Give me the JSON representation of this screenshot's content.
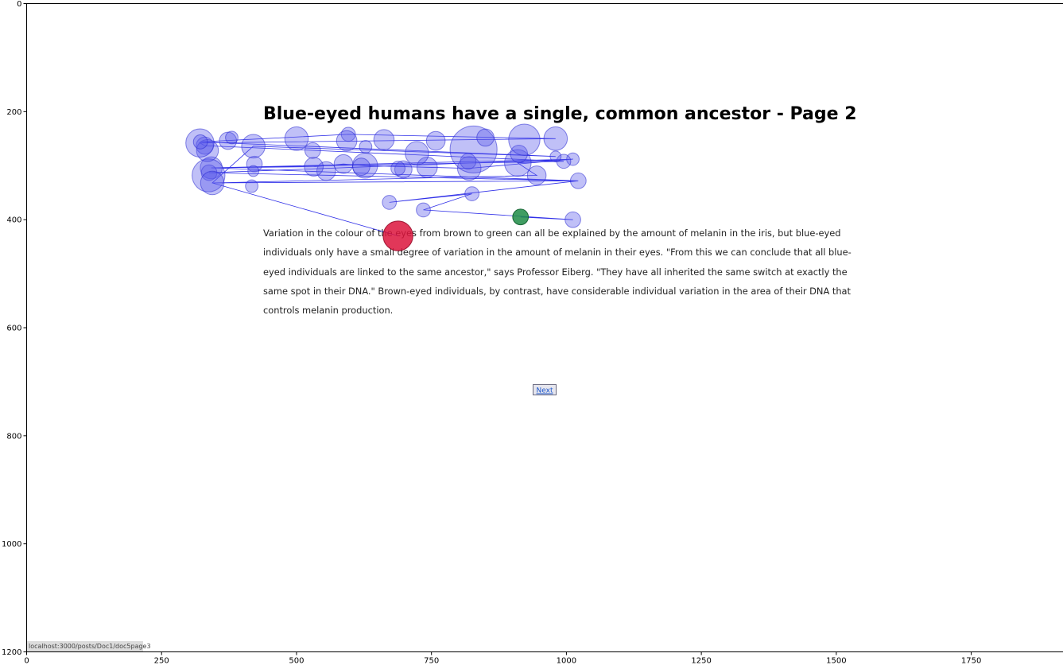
{
  "page": {
    "title": "Blue-eyed humans have a single, common ancestor - Page 2",
    "paragraph_lines": [
      "Variation in the colour of the eyes from brown to green can all be explained by the amount of melanin in the iris, but blue-eyed",
      "individuals only have a small degree of variation in the amount of melanin in their eyes. \"From this we can conclude that all blue-",
      "eyed individuals are linked to the same ancestor,\" says Professor Eiberg. \"They have all inherited the same switch at exactly the",
      "same spot in their DNA.\" Brown-eyed individuals, by contrast, have considerable individual variation in the area of their DNA that",
      "controls melanin production."
    ],
    "next_label": "Next",
    "status_url": "localhost:3000/posts/Doc1/doc5page3"
  },
  "chart_data": {
    "type": "scatter",
    "title": "",
    "xlabel": "",
    "ylabel": "",
    "xlim": [
      0,
      1920
    ],
    "ylim": [
      1200,
      0
    ],
    "x_ticks": [
      0,
      250,
      500,
      750,
      1000,
      1250,
      1500,
      1750
    ],
    "y_ticks": [
      0,
      200,
      400,
      600,
      800,
      1000,
      1200
    ],
    "grid": false,
    "colors": {
      "fixation": "#5a5aeb",
      "first_fixation": "#1e8c46",
      "last_fixation": "#dc143c",
      "scanpath": "#1a1ae6"
    },
    "fixations": [
      {
        "x": 915,
        "y": 395,
        "r": 10,
        "role": "first"
      },
      {
        "x": 1012,
        "y": 400,
        "r": 10
      },
      {
        "x": 735,
        "y": 382,
        "r": 9
      },
      {
        "x": 825,
        "y": 352,
        "r": 9
      },
      {
        "x": 672,
        "y": 368,
        "r": 9
      },
      {
        "x": 1022,
        "y": 328,
        "r": 10
      },
      {
        "x": 945,
        "y": 318,
        "r": 12
      },
      {
        "x": 910,
        "y": 295,
        "r": 17
      },
      {
        "x": 1012,
        "y": 288,
        "r": 8
      },
      {
        "x": 995,
        "y": 292,
        "r": 9
      },
      {
        "x": 980,
        "y": 283,
        "r": 7
      },
      {
        "x": 912,
        "y": 278,
        "r": 11
      },
      {
        "x": 820,
        "y": 305,
        "r": 15
      },
      {
        "x": 818,
        "y": 292,
        "r": 10
      },
      {
        "x": 742,
        "y": 303,
        "r": 13
      },
      {
        "x": 698,
        "y": 307,
        "r": 11
      },
      {
        "x": 688,
        "y": 305,
        "r": 9
      },
      {
        "x": 627,
        "y": 300,
        "r": 16
      },
      {
        "x": 620,
        "y": 302,
        "r": 11
      },
      {
        "x": 587,
        "y": 297,
        "r": 12
      },
      {
        "x": 555,
        "y": 310,
        "r": 12
      },
      {
        "x": 532,
        "y": 302,
        "r": 12
      },
      {
        "x": 422,
        "y": 297,
        "r": 10
      },
      {
        "x": 420,
        "y": 310,
        "r": 7
      },
      {
        "x": 342,
        "y": 304,
        "r": 14
      },
      {
        "x": 338,
        "y": 313,
        "r": 10
      },
      {
        "x": 337,
        "y": 318,
        "r": 21
      },
      {
        "x": 344,
        "y": 332,
        "r": 15
      },
      {
        "x": 417,
        "y": 338,
        "r": 8
      },
      {
        "x": 330,
        "y": 263,
        "r": 11
      },
      {
        "x": 335,
        "y": 272,
        "r": 14
      },
      {
        "x": 321,
        "y": 258,
        "r": 18
      },
      {
        "x": 322,
        "y": 256,
        "r": 9
      },
      {
        "x": 373,
        "y": 254,
        "r": 11
      },
      {
        "x": 380,
        "y": 248,
        "r": 8
      },
      {
        "x": 420,
        "y": 264,
        "r": 15
      },
      {
        "x": 500,
        "y": 250,
        "r": 15
      },
      {
        "x": 530,
        "y": 272,
        "r": 10
      },
      {
        "x": 596,
        "y": 242,
        "r": 9
      },
      {
        "x": 593,
        "y": 254,
        "r": 13
      },
      {
        "x": 628,
        "y": 265,
        "r": 8
      },
      {
        "x": 662,
        "y": 252,
        "r": 13
      },
      {
        "x": 723,
        "y": 277,
        "r": 15
      },
      {
        "x": 758,
        "y": 254,
        "r": 12
      },
      {
        "x": 828,
        "y": 270,
        "r": 30
      },
      {
        "x": 850,
        "y": 248,
        "r": 11
      },
      {
        "x": 922,
        "y": 252,
        "r": 20
      },
      {
        "x": 980,
        "y": 250,
        "r": 15
      },
      {
        "x": 688,
        "y": 430,
        "r": 19,
        "role": "last"
      }
    ],
    "scanpath": [
      [
        915,
        395
      ],
      [
        1012,
        400
      ],
      [
        735,
        382
      ],
      [
        825,
        352
      ],
      [
        672,
        368
      ],
      [
        1022,
        328
      ],
      [
        344,
        332
      ],
      [
        945,
        318
      ],
      [
        910,
        295
      ],
      [
        1012,
        288
      ],
      [
        342,
        304
      ],
      [
        1022,
        328
      ],
      [
        338,
        313
      ],
      [
        1012,
        288
      ],
      [
        820,
        305
      ],
      [
        742,
        303
      ],
      [
        627,
        300
      ],
      [
        587,
        297
      ],
      [
        532,
        302
      ],
      [
        342,
        304
      ],
      [
        995,
        292
      ],
      [
        330,
        263
      ],
      [
        321,
        258
      ],
      [
        980,
        250
      ],
      [
        596,
        242
      ],
      [
        322,
        256
      ],
      [
        980,
        283
      ],
      [
        420,
        264
      ],
      [
        344,
        332
      ],
      [
        688,
        430
      ]
    ]
  }
}
